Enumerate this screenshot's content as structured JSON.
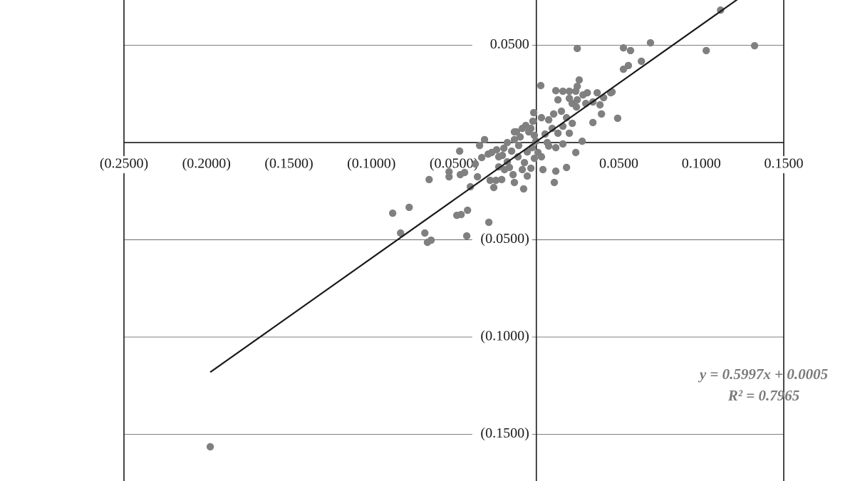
{
  "chart_data": {
    "type": "scatter",
    "color": "#808080",
    "x": [
      -0.1977,
      -0.0871,
      -0.0771,
      -0.0823,
      -0.0676,
      -0.066,
      -0.0638,
      -0.0422,
      -0.0417,
      -0.0482,
      -0.0456,
      -0.0288,
      -0.065,
      -0.0529,
      -0.0529,
      -0.0465,
      -0.0435,
      -0.04,
      -0.0357,
      -0.0461,
      -0.0314,
      -0.0344,
      -0.0258,
      -0.028,
      -0.0245,
      -0.021,
      -0.0133,
      -0.0077,
      -0.0055,
      -0.0033,
      -0.0072,
      -0.0193,
      -0.0176,
      -0.0271,
      -0.0241,
      -0.0206,
      -0.015,
      -0.0133,
      -0.0107,
      -0.012,
      -0.0085,
      -0.0064,
      -0.0033,
      -0.0021,
      -0.0012,
      -0.0003,
      -0.0025,
      0.001,
      0.0031,
      0.004,
      0.0109,
      0.0118,
      0.0183,
      0.0239,
      0.0278,
      0.0161,
      0.0118,
      0.0075,
      0.0053,
      0.0075,
      0.0096,
      0.0131,
      0.0161,
      0.02,
      0.0218,
      0.0183,
      0.0152,
      0.0131,
      0.0161,
      0.02,
      0.0243,
      0.0217,
      0.0248,
      0.0283,
      0.0309,
      0.0343,
      0.0369,
      0.0408,
      0.0386,
      0.0395,
      0.0343,
      0.03,
      0.0239,
      0.02,
      0.0118,
      0.0105,
      0.0031,
      -0.0016,
      -0.0046,
      -0.0098,
      -0.0133,
      -0.0176,
      -0.0197,
      -0.0228,
      -0.0292,
      -0.037,
      -0.0331,
      -0.0111,
      -0.0055,
      -0.0012,
      -0.0085,
      -0.0163,
      -0.0228,
      -0.0141,
      0.0451,
      0.0248,
      0.0066,
      0.1117,
      0.1323,
      0.103,
      0.0692,
      0.0248,
      0.0528,
      0.0571,
      0.0558,
      0.0528,
      0.0637,
      0.0027,
      0.026,
      0.0459,
      0.0493
    ],
    "values": [
      -0.1564,
      -0.0363,
      -0.0333,
      -0.0465,
      -0.0465,
      -0.0513,
      -0.0502,
      -0.048,
      -0.0348,
      -0.0374,
      -0.037,
      -0.041,
      -0.019,
      -0.0176,
      -0.015,
      -0.0044,
      -0.0154,
      -0.0227,
      -0.0176,
      -0.0165,
      0.0015,
      -0.0015,
      -0.0231,
      -0.0194,
      -0.0194,
      -0.019,
      -0.0205,
      -0.0238,
      -0.0172,
      -0.0132,
      -0.0103,
      -0.0139,
      -0.0099,
      -0.0051,
      -0.0037,
      -0.0066,
      -0.0044,
      0.0015,
      -0.0015,
      0.0055,
      0.0073,
      0.0088,
      0.0073,
      0.011,
      0.0037,
      0.0007,
      -0.0026,
      -0.0051,
      -0.0073,
      -0.0139,
      -0.0205,
      -0.0147,
      -0.0128,
      -0.0051,
      0.0007,
      -0.0007,
      -0.0026,
      -0.0018,
      0.0044,
      0.0117,
      0.0073,
      0.0048,
      0.0084,
      0.0048,
      0.0099,
      0.0128,
      0.0161,
      0.022,
      0.0264,
      0.0227,
      0.0183,
      0.0201,
      0.022,
      0.0245,
      0.0256,
      0.0209,
      0.0256,
      0.0231,
      0.0194,
      0.0147,
      0.0103,
      0.0201,
      0.0264,
      0.0264,
      0.0267,
      0.0147,
      0.0128,
      0.0154,
      0.0055,
      0.0029,
      0.0055,
      0.0,
      -0.0029,
      -0.0073,
      -0.0059,
      -0.011,
      -0.0077,
      -0.0073,
      -0.0048,
      -0.0081,
      -0.0139,
      -0.0128,
      -0.0125,
      -0.0165,
      0.0256,
      0.0289,
      0.0,
      0.0681,
      0.0498,
      0.0473,
      0.0513,
      0.0484,
      0.0487,
      0.0473,
      0.0396,
      0.0377,
      0.0418,
      0.0293,
      0.0322,
      0.026,
      0.0125
    ],
    "xlim": [
      -0.25,
      0.15
    ],
    "ylim": [
      -0.174,
      0.0733
    ],
    "xticks": [
      {
        "value": -0.25,
        "label": "(0.2500)"
      },
      {
        "value": -0.2,
        "label": "(0.2000)"
      },
      {
        "value": -0.15,
        "label": "(0.1500)"
      },
      {
        "value": -0.1,
        "label": "(0.1000)"
      },
      {
        "value": -0.05,
        "label": "(0.0500)"
      },
      {
        "value": 0.05,
        "label": "0.0500"
      },
      {
        "value": 0.1,
        "label": "0.1000"
      },
      {
        "value": 0.15,
        "label": "0.1500"
      }
    ],
    "yticks": [
      {
        "value": 0.05,
        "label": "0.0500"
      },
      {
        "value": -0.05,
        "label": "(0.0500)"
      },
      {
        "value": -0.1,
        "label": "(0.1000)"
      },
      {
        "value": -0.15,
        "label": "(0.1500)"
      }
    ],
    "grid": true,
    "trendline": {
      "slope": 0.5997,
      "intercept": 0.0005,
      "color": "#1a1a1a"
    },
    "annotations": [
      "y = 0.5997x + 0.0005",
      "R² = 0.7965"
    ]
  }
}
